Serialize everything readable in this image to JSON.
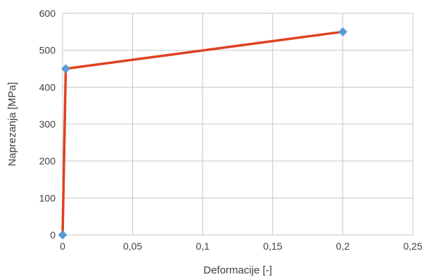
{
  "chart_data": {
    "type": "line",
    "title": "",
    "xlabel": "Deformacije [-]",
    "ylabel": "Naprezanja [MPa]",
    "xlim": [
      0,
      0.25
    ],
    "ylim": [
      0,
      600
    ],
    "x_ticks": [
      0,
      0.05,
      0.1,
      0.15,
      0.2,
      0.25
    ],
    "x_tick_labels": [
      "0",
      "0,05",
      "0,1",
      "0,15",
      "0,2",
      "0,25"
    ],
    "y_ticks": [
      0,
      100,
      200,
      300,
      400,
      500,
      600
    ],
    "y_tick_labels": [
      "0",
      "100",
      "200",
      "300",
      "400",
      "500",
      "600"
    ],
    "grid": true,
    "legend": "none",
    "series": [
      {
        "line_color": "#e0401f",
        "marker_color": "#5b9bd5",
        "marker": "diamond",
        "x": [
          0,
          0.00225,
          0.2
        ],
        "y": [
          0,
          450,
          550
        ]
      }
    ]
  }
}
